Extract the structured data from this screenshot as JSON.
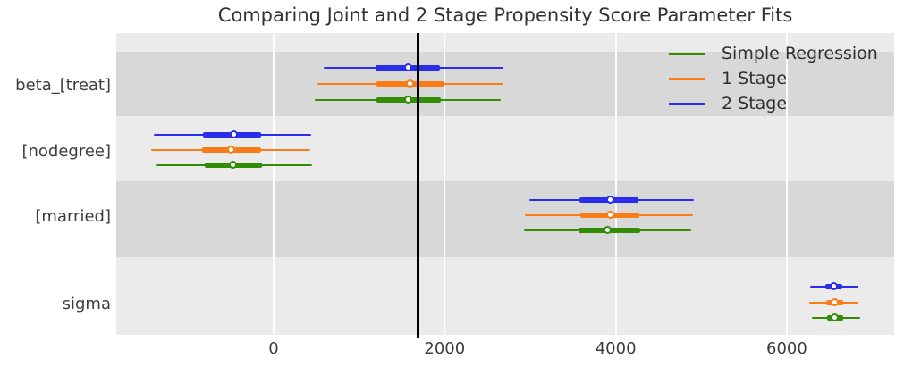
{
  "title": "Comparing Joint and 2 Stage Propensity Score Parameter Fits",
  "chart_data": {
    "type": "forest",
    "title": "Comparing Joint and 2 Stage Propensity Score Parameter Fits",
    "orientation": "horizontal",
    "xlim": [
      -1840,
      7255
    ],
    "x_ticks": [
      0,
      2000,
      4000,
      6000
    ],
    "x_tick_labels": [
      "0",
      "2000",
      "4000",
      "6000"
    ],
    "grid": "vertical white gridlines on gray background, alternating shaded parameter bands",
    "reference_line": {
      "x": 1690,
      "color": "#000000"
    },
    "marker_style": "white-filled circle = point estimate (median); thick segment = interquartile range; thin segment = full credible interval",
    "legend": {
      "position": "upper right",
      "entries": [
        {
          "label": "Simple Regression",
          "color": "#328c06"
        },
        {
          "label": "1 Stage",
          "color": "#fa7c17"
        },
        {
          "label": "2 Stage",
          "color": "#2a2eec"
        }
      ]
    },
    "row_order_within_group": [
      "2 Stage",
      "1 Stage",
      "Simple Regression"
    ],
    "parameters": [
      {
        "label": "beta_[treat]",
        "estimates": [
          {
            "model": "2 Stage",
            "ci_low": 585,
            "ci_high": 2685,
            "q_low": 1190,
            "q_high": 1945,
            "point": 1580
          },
          {
            "model": "1 Stage",
            "ci_low": 510,
            "ci_high": 2685,
            "q_low": 1200,
            "q_high": 1995,
            "point": 1600
          },
          {
            "model": "Simple Regression",
            "ci_low": 480,
            "ci_high": 2655,
            "q_low": 1200,
            "q_high": 1955,
            "point": 1580
          }
        ]
      },
      {
        "label": "[nodegree]",
        "estimates": [
          {
            "model": "2 Stage",
            "ci_low": -1400,
            "ci_high": 440,
            "q_low": -825,
            "q_high": -145,
            "point": -460
          },
          {
            "model": "1 Stage",
            "ci_low": -1430,
            "ci_high": 430,
            "q_low": -835,
            "q_high": -145,
            "point": -490
          },
          {
            "model": "Simple Regression",
            "ci_low": -1370,
            "ci_high": 450,
            "q_low": -805,
            "q_high": -135,
            "point": -470
          }
        ]
      },
      {
        "label": "[married]",
        "estimates": [
          {
            "model": "2 Stage",
            "ci_low": 2990,
            "ci_high": 4910,
            "q_low": 3575,
            "q_high": 4265,
            "point": 3940
          },
          {
            "model": "1 Stage",
            "ci_low": 2935,
            "ci_high": 4900,
            "q_low": 3585,
            "q_high": 4275,
            "point": 3940
          },
          {
            "model": "Simple Regression",
            "ci_low": 2925,
            "ci_high": 4880,
            "q_low": 3565,
            "q_high": 4285,
            "point": 3910
          }
        ]
      },
      {
        "label": "sigma",
        "estimates": [
          {
            "model": "2 Stage",
            "ci_low": 6270,
            "ci_high": 6835,
            "q_low": 6450,
            "q_high": 6650,
            "point": 6555
          },
          {
            "model": "1 Stage",
            "ci_low": 6260,
            "ci_high": 6835,
            "q_low": 6460,
            "q_high": 6660,
            "point": 6565
          },
          {
            "model": "Simple Regression",
            "ci_low": 6290,
            "ci_high": 6855,
            "q_low": 6470,
            "q_high": 6660,
            "point": 6565
          }
        ]
      }
    ],
    "colors": {
      "axes_background": "#ebebeb",
      "shaded_band": "#d8d8d8",
      "gridline": "#fdfdfd",
      "reference_line": "#000000",
      "text": "#3d3d3d"
    }
  }
}
